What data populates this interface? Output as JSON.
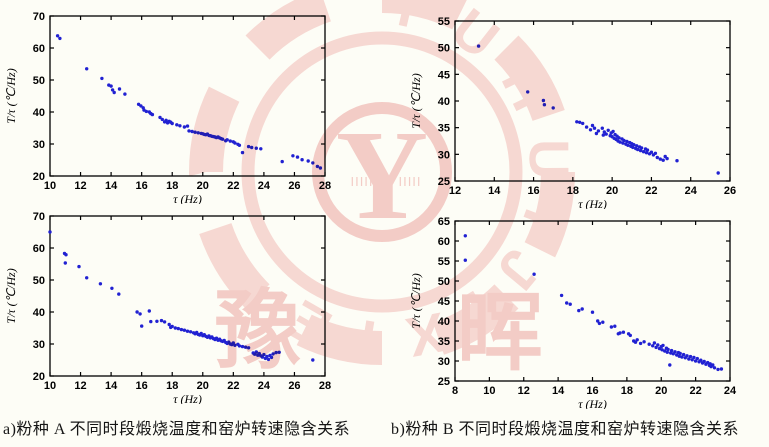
{
  "style": {
    "point_color": "#2121d2",
    "axis_color": "#000000",
    "watermark_color": "#f3bcbc",
    "watermark_dark": "#eca6a6",
    "background": "#fdfdf6"
  },
  "captions": {
    "a": "a)粉种 A 不同时段煅烧温度和窑炉转速隐含关系",
    "b": "b)粉种 B 不同时段煅烧温度和窑炉转速隐含关系"
  },
  "watermark": {
    "ring_text": "YUHUIJIXIE",
    "center_letter": "Y",
    "char_left": "豫",
    "char_right": "晖",
    "barcode": "IIIII"
  },
  "chart_data": [
    {
      "type": "scatter",
      "title": "",
      "xlabel": "τ (Hz)",
      "ylabel": "T/τ (℃/Hz)",
      "xlim": [
        10,
        28
      ],
      "ylim": [
        20,
        70
      ],
      "xticks": [
        10,
        12,
        14,
        16,
        18,
        20,
        22,
        24,
        26,
        28
      ],
      "yticks": [
        20,
        30,
        40,
        50,
        60,
        70
      ],
      "grid": false,
      "legend": null,
      "x": [
        10.5,
        10.65,
        12.4,
        13.4,
        13.85,
        14.0,
        14.1,
        14.2,
        14.55,
        14.9,
        15.8,
        15.95,
        16.1,
        16.15,
        16.3,
        16.5,
        16.6,
        16.7,
        17.2,
        17.35,
        17.5,
        17.6,
        17.7,
        17.8,
        17.9,
        18.0,
        18.3,
        18.5,
        18.8,
        19.0,
        19.1,
        19.3,
        19.5,
        19.7,
        19.9,
        20.0,
        20.1,
        20.2,
        20.3,
        20.4,
        20.5,
        20.6,
        20.7,
        20.8,
        20.9,
        21.0,
        21.1,
        21.2,
        21.3,
        21.5,
        21.6,
        21.8,
        22.0,
        22.1,
        22.3,
        22.4,
        22.6,
        23.0,
        23.2,
        23.5,
        23.8,
        25.2,
        25.9,
        26.2,
        26.5,
        26.9,
        27.2,
        27.5,
        27.7
      ],
      "y": [
        63.8,
        63.0,
        53.5,
        50.5,
        48.4,
        48.1,
        46.9,
        46.1,
        47.2,
        45.6,
        42.4,
        41.9,
        41.3,
        40.6,
        40.2,
        40.0,
        39.5,
        39.2,
        38.3,
        37.7,
        36.9,
        37.4,
        36.6,
        37.1,
        36.8,
        36.4,
        36.0,
        35.7,
        35.3,
        35.6,
        34.1,
        33.9,
        33.7,
        33.5,
        33.3,
        33.2,
        33.0,
        32.9,
        33.1,
        32.7,
        32.6,
        32.4,
        32.3,
        32.2,
        32.0,
        32.2,
        31.9,
        31.7,
        31.5,
        31.0,
        31.3,
        30.9,
        30.7,
        30.3,
        29.9,
        29.6,
        27.3,
        29.2,
        28.9,
        28.7,
        28.5,
        24.5,
        26.3,
        25.9,
        25.1,
        24.7,
        24.1,
        23.0,
        22.5
      ]
    },
    {
      "type": "scatter",
      "title": "",
      "xlabel": "τ (Hz)",
      "ylabel": "T/τ (℃/Hz)",
      "xlim": [
        12,
        26
      ],
      "ylim": [
        25,
        55
      ],
      "xticks": [
        12,
        14,
        16,
        18,
        20,
        22,
        24,
        26
      ],
      "yticks": [
        25,
        30,
        35,
        40,
        45,
        50,
        55
      ],
      "grid": false,
      "legend": null,
      "x": [
        13.2,
        15.7,
        16.5,
        16.55,
        17.0,
        18.2,
        18.35,
        18.5,
        18.7,
        18.9,
        19.0,
        19.1,
        19.2,
        19.3,
        19.5,
        19.55,
        19.6,
        19.7,
        19.8,
        19.9,
        19.95,
        20.0,
        20.05,
        20.1,
        20.15,
        20.2,
        20.25,
        20.3,
        20.35,
        20.4,
        20.5,
        20.55,
        20.6,
        20.7,
        20.75,
        20.8,
        20.9,
        20.95,
        21.0,
        21.05,
        21.1,
        21.2,
        21.25,
        21.3,
        21.4,
        21.45,
        21.5,
        21.6,
        21.7,
        21.75,
        21.8,
        21.9,
        22.0,
        22.1,
        22.2,
        22.3,
        22.45,
        22.6,
        22.7,
        22.8,
        23.3,
        25.4
      ],
      "y": [
        50.3,
        41.7,
        40.1,
        39.3,
        38.7,
        36.1,
        36.0,
        35.8,
        35.1,
        34.6,
        35.4,
        34.9,
        33.9,
        34.4,
        34.9,
        33.6,
        34.2,
        33.8,
        34.5,
        33.5,
        34.0,
        33.3,
        34.3,
        33.0,
        33.7,
        32.8,
        33.4,
        32.5,
        33.1,
        32.3,
        32.9,
        32.1,
        32.6,
        31.9,
        32.4,
        31.7,
        32.2,
        31.5,
        32.0,
        31.3,
        31.8,
        31.1,
        31.6,
        30.9,
        31.4,
        30.7,
        31.2,
        30.5,
        31.0,
        30.3,
        30.8,
        30.1,
        30.4,
        29.9,
        30.2,
        29.4,
        29.1,
        28.9,
        29.6,
        29.2,
        28.8,
        26.5
      ]
    },
    {
      "type": "scatter",
      "title": "",
      "xlabel": "τ (Hz)",
      "ylabel": "T/τ (℃/Hz)",
      "xlim": [
        10,
        28
      ],
      "ylim": [
        20,
        70
      ],
      "xticks": [
        10,
        12,
        14,
        16,
        18,
        20,
        22,
        24,
        26,
        28
      ],
      "yticks": [
        20,
        30,
        40,
        50,
        60,
        70
      ],
      "grid": false,
      "legend": null,
      "x": [
        10.0,
        10.95,
        11.0,
        11.05,
        11.9,
        12.4,
        13.3,
        14.05,
        14.5,
        15.7,
        15.9,
        16.0,
        16.5,
        16.6,
        17.0,
        17.3,
        17.5,
        17.8,
        17.9,
        18.0,
        18.2,
        18.4,
        18.6,
        18.8,
        19.0,
        19.2,
        19.4,
        19.5,
        19.6,
        19.7,
        19.8,
        19.9,
        20.0,
        20.1,
        20.2,
        20.3,
        20.4,
        20.5,
        20.6,
        20.7,
        20.8,
        20.9,
        21.0,
        21.1,
        21.2,
        21.3,
        21.4,
        21.5,
        21.6,
        21.7,
        21.8,
        21.9,
        22.0,
        22.1,
        22.3,
        22.4,
        22.6,
        22.8,
        23.0,
        23.3,
        23.4,
        23.5,
        23.6,
        23.7,
        23.8,
        23.9,
        24.0,
        24.1,
        24.2,
        24.3,
        24.4,
        24.5,
        24.6,
        24.8,
        25.0,
        27.2
      ],
      "y": [
        65.0,
        58.3,
        55.3,
        57.9,
        54.2,
        50.7,
        48.8,
        47.4,
        45.6,
        40.0,
        39.4,
        35.6,
        40.3,
        37.0,
        37.1,
        37.3,
        36.9,
        36.1,
        35.2,
        35.5,
        35.0,
        34.8,
        34.5,
        34.3,
        34.0,
        33.8,
        33.5,
        33.2,
        33.6,
        33.0,
        32.8,
        33.3,
        32.6,
        32.9,
        32.4,
        32.1,
        32.5,
        31.9,
        32.2,
        31.7,
        31.4,
        31.8,
        31.2,
        31.5,
        31.0,
        30.8,
        31.1,
        30.5,
        30.2,
        30.6,
        30.0,
        29.8,
        30.3,
        29.6,
        29.9,
        29.4,
        29.2,
        29.0,
        28.8,
        27.2,
        26.8,
        27.5,
        26.5,
        27.0,
        26.3,
        25.9,
        26.7,
        25.5,
        26.1,
        25.2,
        26.4,
        25.8,
        26.9,
        27.3,
        27.4,
        25.0
      ]
    },
    {
      "type": "scatter",
      "title": "",
      "xlabel": "τ (Hz)",
      "ylabel": "T/τ (℃/Hz)",
      "xlim": [
        8,
        24
      ],
      "ylim": [
        25,
        65
      ],
      "xticks": [
        8,
        10,
        12,
        14,
        16,
        18,
        20,
        22,
        24
      ],
      "yticks": [
        25,
        30,
        35,
        40,
        45,
        50,
        55,
        60,
        65
      ],
      "grid": false,
      "legend": null,
      "x": [
        8.6,
        8.6,
        12.6,
        14.2,
        14.5,
        14.7,
        15.2,
        15.4,
        16.0,
        16.3,
        16.4,
        16.6,
        17.1,
        17.3,
        17.5,
        17.6,
        17.8,
        18.1,
        18.2,
        18.4,
        18.5,
        18.6,
        18.8,
        19.0,
        19.3,
        19.5,
        19.6,
        19.7,
        19.8,
        19.9,
        20.0,
        20.05,
        20.1,
        20.2,
        20.3,
        20.35,
        20.4,
        20.5,
        20.55,
        20.6,
        20.7,
        20.8,
        20.9,
        21.0,
        21.05,
        21.1,
        21.2,
        21.3,
        21.4,
        21.5,
        21.6,
        21.7,
        21.8,
        21.9,
        22.0,
        22.1,
        22.2,
        22.3,
        22.4,
        22.5,
        22.6,
        22.7,
        22.8,
        22.85,
        22.9,
        23.0,
        23.1,
        23.3,
        23.5
      ],
      "y": [
        61.3,
        55.2,
        51.7,
        46.4,
        44.5,
        44.2,
        42.6,
        43.0,
        42.2,
        40.0,
        39.4,
        39.7,
        38.5,
        38.7,
        36.8,
        37.0,
        37.2,
        36.8,
        36.4,
        35.0,
        34.7,
        35.3,
        34.4,
        34.8,
        34.2,
        33.8,
        34.5,
        33.4,
        34.0,
        33.1,
        33.6,
        32.8,
        33.9,
        32.5,
        33.2,
        32.2,
        32.9,
        29.0,
        32.0,
        32.6,
        31.8,
        32.3,
        31.5,
        32.1,
        31.2,
        31.9,
        31.0,
        31.6,
        30.8,
        31.3,
        30.5,
        31.1,
        30.3,
        30.9,
        30.0,
        30.6,
        29.8,
        30.2,
        29.5,
        29.9,
        29.2,
        29.6,
        28.9,
        29.3,
        28.6,
        29.0,
        28.3,
        27.9,
        28.0
      ]
    }
  ]
}
